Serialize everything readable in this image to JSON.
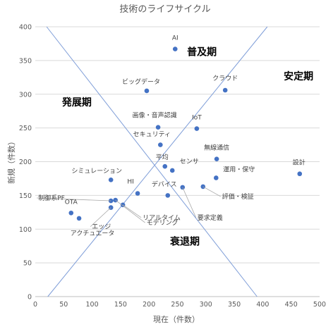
{
  "chart_data": {
    "type": "scatter",
    "title": "技術のライフサイクル",
    "xlabel": "現在（件数）",
    "ylabel": "新規（件数）",
    "xlim": [
      0,
      500
    ],
    "ylim": [
      0,
      400
    ],
    "xticks": [
      "0",
      "50",
      "100",
      "150",
      "200",
      "250",
      "300",
      "350",
      "400",
      "450",
      "500"
    ],
    "yticks": [
      "0",
      "50",
      "100",
      "150",
      "200",
      "250",
      "300",
      "350",
      "400"
    ],
    "grid": "horizontal",
    "point_color": "#4472C4",
    "line_color": "#7F9ED8",
    "regions": [
      {
        "label": "普及期",
        "x": 293,
        "y": 363
      },
      {
        "label": "安定期",
        "x": 463,
        "y": 327
      },
      {
        "label": "発展期",
        "x": 73,
        "y": 288
      },
      {
        "label": "衰退期",
        "x": 263,
        "y": 82
      }
    ],
    "trend_lines": [
      {
        "from": [
          20,
          400
        ],
        "to": [
          390,
          0
        ]
      },
      {
        "from": [
          22,
          0
        ],
        "to": [
          408,
          400
        ]
      }
    ],
    "points": [
      {
        "label": "AI",
        "x": 246,
        "y": 367
      },
      {
        "label": "ビッグデータ",
        "x": 196,
        "y": 305
      },
      {
        "label": "クラウド",
        "x": 334,
        "y": 306
      },
      {
        "label": "画像・音声認識",
        "x": 216,
        "y": 251
      },
      {
        "label": "IoT",
        "x": 284,
        "y": 249
      },
      {
        "label": "セキュリティ",
        "x": 220,
        "y": 225
      },
      {
        "label": "無線通信",
        "x": 319,
        "y": 204
      },
      {
        "label": "設計",
        "x": 465,
        "y": 182
      },
      {
        "label": "平均",
        "x": 228,
        "y": 193
      },
      {
        "label": "センサ",
        "x": 241,
        "y": 187
      },
      {
        "label": "シミュレーション",
        "x": 133,
        "y": 173
      },
      {
        "label": "運用・保守",
        "x": 318,
        "y": 176
      },
      {
        "label": "HI",
        "x": 180,
        "y": 153
      },
      {
        "label": "デバイス",
        "x": 233,
        "y": 150
      },
      {
        "label": "評価・検証",
        "x": 295,
        "y": 163
      },
      {
        "label": "制御系PF",
        "x": 133,
        "y": 142
      },
      {
        "label": "リアルタイム",
        "x": 154,
        "y": 136
      },
      {
        "label": "エッジ",
        "x": 133,
        "y": 132
      },
      {
        "label": "モデリング",
        "x": 141,
        "y": 143
      },
      {
        "label": "要求定義",
        "x": 259,
        "y": 162
      },
      {
        "label": "OTA",
        "x": 63,
        "y": 124
      },
      {
        "label": "アクチュエータ",
        "x": 77,
        "y": 116
      }
    ]
  }
}
